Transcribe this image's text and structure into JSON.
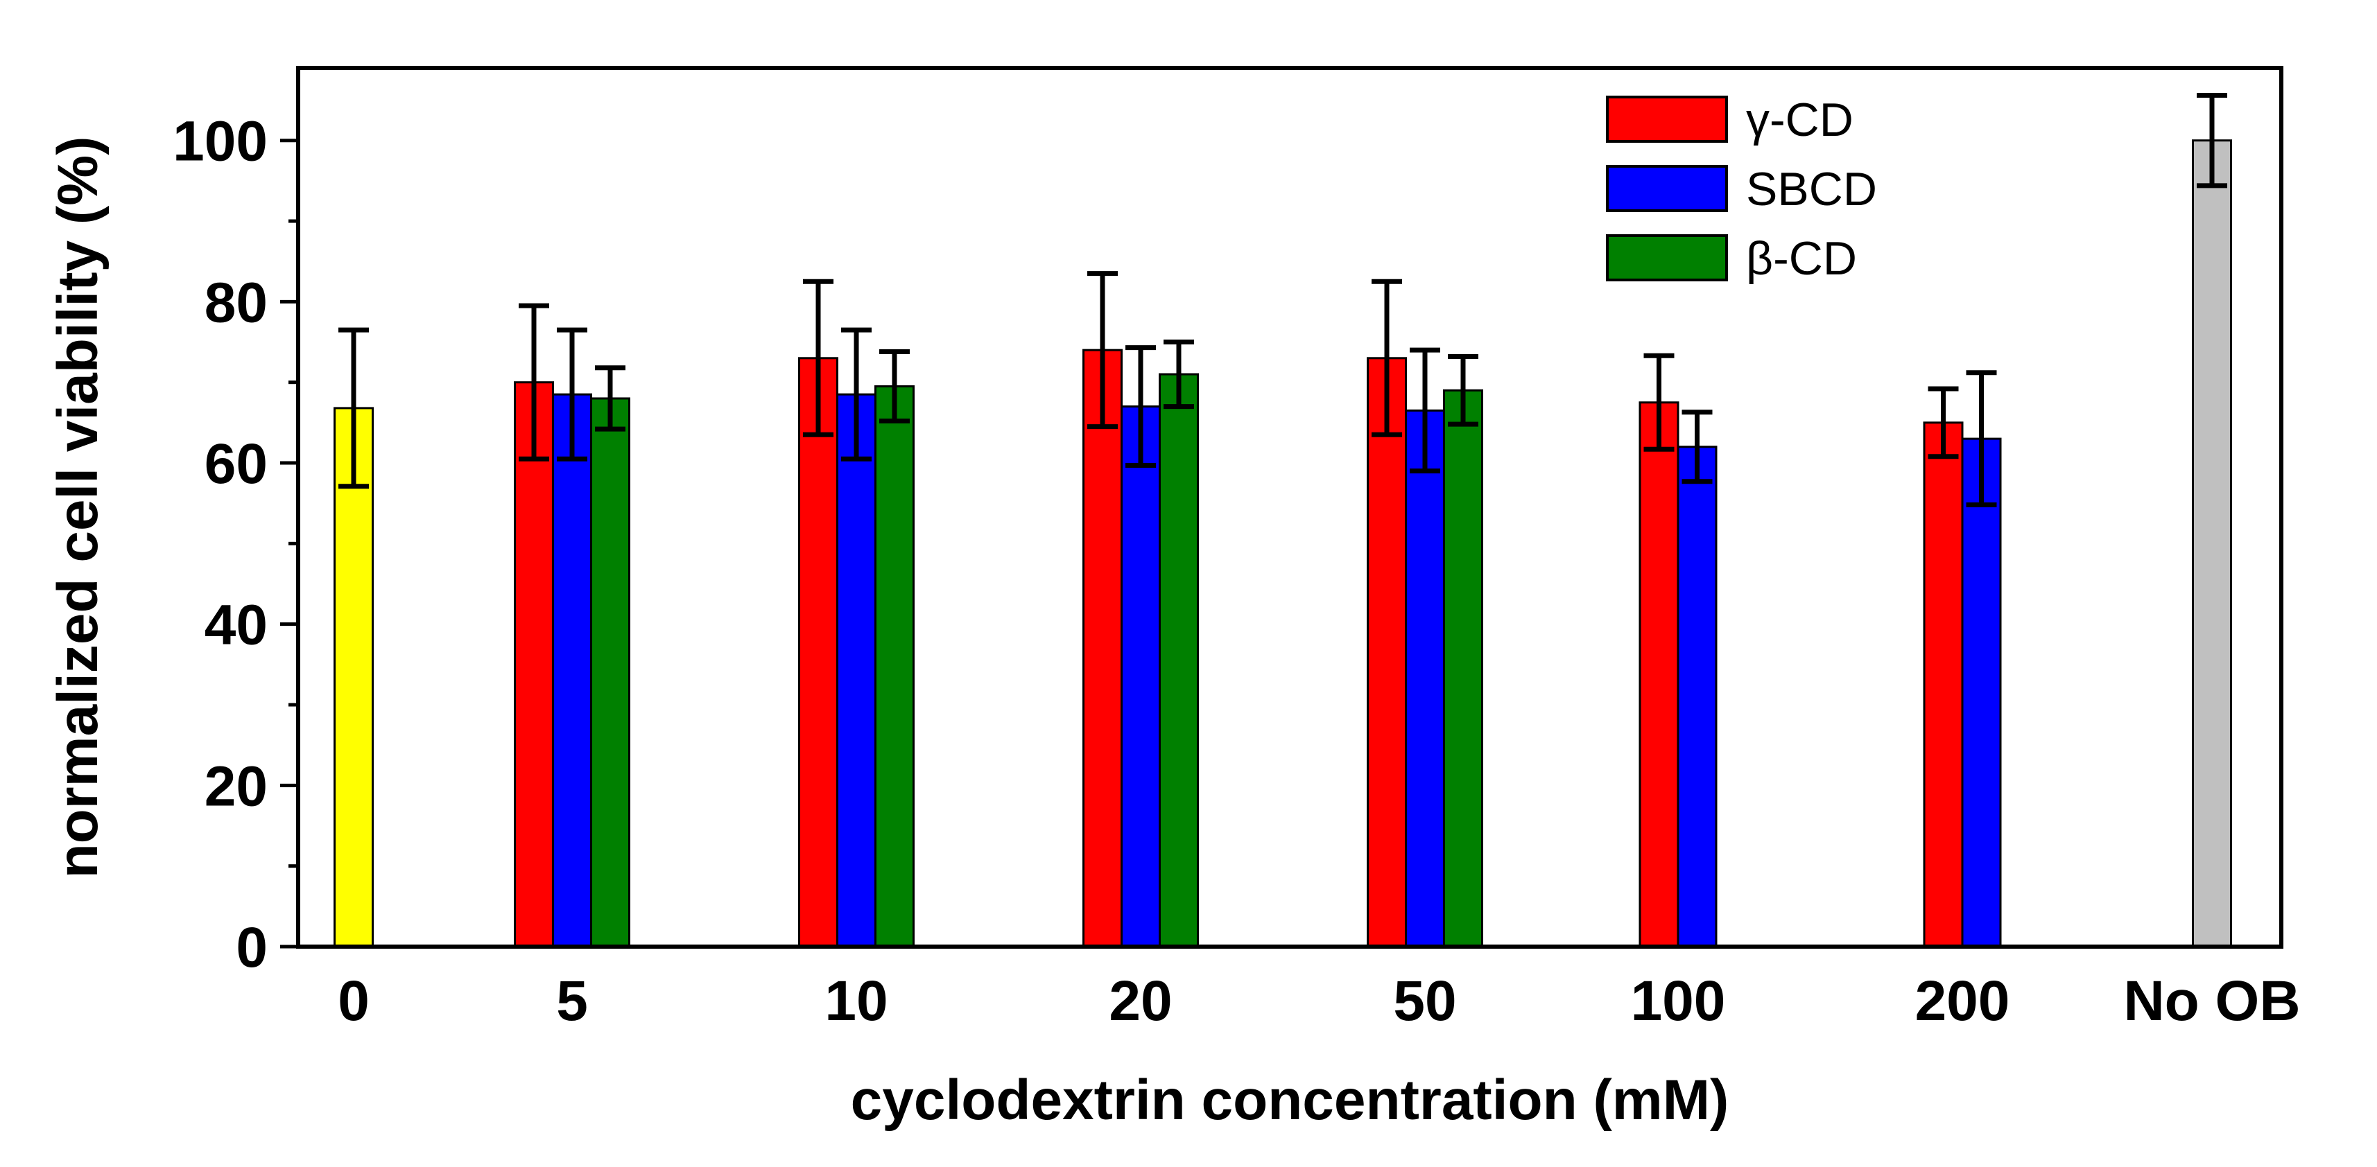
{
  "chart_data": {
    "type": "bar",
    "title": "",
    "xlabel": "cyclodextrin concentration (mM)",
    "ylabel": "normalized cell viability (%)",
    "ylim": [
      0,
      109
    ],
    "yticks": [
      0,
      20,
      40,
      60,
      80,
      100
    ],
    "grid": false,
    "legend_position": "top-right",
    "categories": [
      "0",
      "5",
      "10",
      "20",
      "50",
      "100",
      "200",
      "No OB"
    ],
    "series": [
      {
        "name": "γ-CD",
        "color": "#ff0000",
        "values": [
          null,
          70,
          73,
          74,
          73,
          67.5,
          65,
          null
        ],
        "errors": [
          null,
          9.5,
          9.5,
          9.5,
          9.5,
          5.8,
          4.2,
          null
        ]
      },
      {
        "name": "SBCD",
        "color": "#0000ff",
        "values": [
          null,
          68.5,
          68.5,
          67,
          66.5,
          62,
          63,
          null
        ],
        "errors": [
          null,
          8,
          8,
          7.3,
          7.5,
          4.3,
          8.2,
          null
        ]
      },
      {
        "name": "β-CD",
        "color": "#008000",
        "values": [
          null,
          68,
          69.5,
          71,
          69,
          null,
          null,
          null
        ],
        "errors": [
          null,
          3.8,
          4.3,
          4,
          4.2,
          null,
          null,
          null
        ]
      }
    ],
    "singles": [
      {
        "category": "0",
        "value": 66.8,
        "error": 9.7,
        "color": "#ffff00"
      },
      {
        "category": "No OB",
        "value": 100,
        "error": 5.6,
        "color": "#c0c0c0"
      }
    ]
  }
}
